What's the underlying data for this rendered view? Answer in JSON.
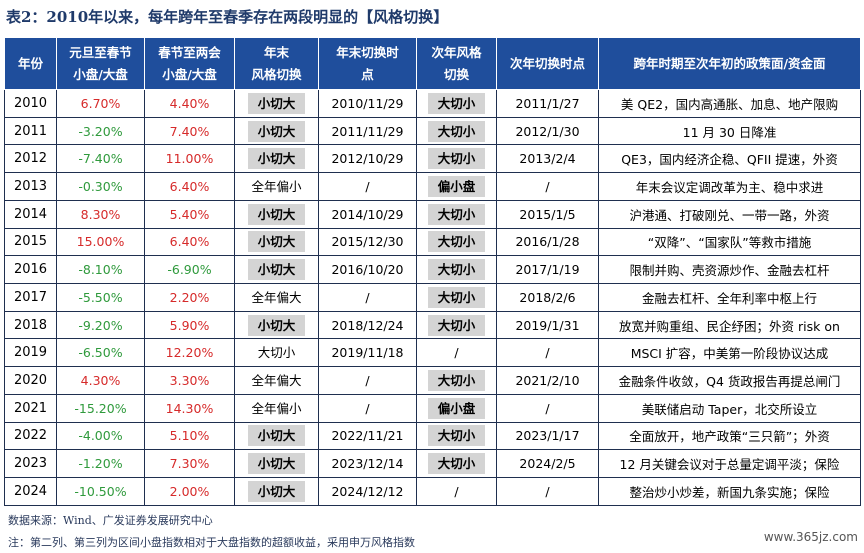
{
  "title": "表2：2010年以来，每年跨年至春季存在两段明显的【风格切换】",
  "headers": [
    "年份",
    "元旦至春节\n小盘/大盘",
    "春节至两会\n小盘/大盘",
    "年末\n风格切换",
    "年末切换时\n点",
    "次年风格\n切换",
    "次年切换时点",
    "跨年时期至次年初的政策面/资金面"
  ],
  "rows": [
    {
      "year": "2010",
      "c1": "6.70%",
      "c1c": "red",
      "c2": "4.40%",
      "c2c": "red",
      "ye": "小切大",
      "yeb": true,
      "yt": "2010/11/29",
      "ny": "大切小",
      "nyb": true,
      "nt": "2011/1/27",
      "policy": "美 QE2，国内高通胀、加息、地产限购"
    },
    {
      "year": "2011",
      "c1": "-3.20%",
      "c1c": "green",
      "c2": "7.40%",
      "c2c": "red",
      "ye": "小切大",
      "yeb": true,
      "yt": "2011/11/29",
      "ny": "大切小",
      "nyb": true,
      "nt": "2012/1/30",
      "policy": "11 月 30 日降准"
    },
    {
      "year": "2012",
      "c1": "-7.40%",
      "c1c": "green",
      "c2": "11.00%",
      "c2c": "red",
      "ye": "小切大",
      "yeb": true,
      "yt": "2012/10/29",
      "ny": "大切小",
      "nyb": true,
      "nt": "2013/2/4",
      "policy": "QE3，国内经济企稳、QFII 提速，外资"
    },
    {
      "year": "2013",
      "c1": "-0.30%",
      "c1c": "green",
      "c2": "6.40%",
      "c2c": "red",
      "ye": "全年偏小",
      "yeb": false,
      "yt": "/",
      "ny": "偏小盘",
      "nyb": true,
      "nt": "/",
      "policy": "年末会议定调改革为主、稳中求进"
    },
    {
      "year": "2014",
      "c1": "8.30%",
      "c1c": "red",
      "c2": "5.40%",
      "c2c": "red",
      "ye": "小切大",
      "yeb": true,
      "yt": "2014/10/29",
      "ny": "大切小",
      "nyb": true,
      "nt": "2015/1/5",
      "policy": "沪港通、打破刚兑、一带一路，外资"
    },
    {
      "year": "2015",
      "c1": "15.00%",
      "c1c": "red",
      "c2": "6.40%",
      "c2c": "red",
      "ye": "小切大",
      "yeb": true,
      "yt": "2015/12/30",
      "ny": "大切小",
      "nyb": true,
      "nt": "2016/1/28",
      "policy": "“双降”、“国家队”等救市措施"
    },
    {
      "year": "2016",
      "c1": "-8.10%",
      "c1c": "green",
      "c2": "-6.90%",
      "c2c": "green",
      "ye": "小切大",
      "yeb": true,
      "yt": "2016/10/20",
      "ny": "大切小",
      "nyb": true,
      "nt": "2017/1/19",
      "policy": "限制并购、壳资源炒作、金融去杠杆"
    },
    {
      "year": "2017",
      "c1": "-5.50%",
      "c1c": "green",
      "c2": "2.20%",
      "c2c": "red",
      "ye": "全年偏大",
      "yeb": false,
      "yt": "/",
      "ny": "大切小",
      "nyb": true,
      "nt": "2018/2/6",
      "policy": "金融去杠杆、全年利率中枢上行"
    },
    {
      "year": "2018",
      "c1": "-9.20%",
      "c1c": "green",
      "c2": "5.90%",
      "c2c": "red",
      "ye": "小切大",
      "yeb": true,
      "yt": "2018/12/24",
      "ny": "大切小",
      "nyb": true,
      "nt": "2019/1/31",
      "policy": "放宽并购重组、民企纾困；外资 risk on"
    },
    {
      "year": "2019",
      "c1": "-6.50%",
      "c1c": "green",
      "c2": "12.20%",
      "c2c": "red",
      "ye": "大切小",
      "yeb": false,
      "yt": "2019/11/18",
      "ny": "/",
      "nyb": false,
      "nt": "/",
      "policy": "MSCI 扩容，中美第一阶段协议达成"
    },
    {
      "year": "2020",
      "c1": "4.30%",
      "c1c": "red",
      "c2": "3.30%",
      "c2c": "red",
      "ye": "全年偏大",
      "yeb": false,
      "yt": "/",
      "ny": "大切小",
      "nyb": true,
      "nt": "2021/2/10",
      "policy": "金融条件收敛，Q4 货政报告再提总闸门"
    },
    {
      "year": "2021",
      "c1": "-15.20%",
      "c1c": "green",
      "c2": "14.30%",
      "c2c": "red",
      "ye": "全年偏小",
      "yeb": false,
      "yt": "/",
      "ny": "偏小盘",
      "nyb": true,
      "nt": "/",
      "policy": "美联储启动 Taper，北交所设立"
    },
    {
      "year": "2022",
      "c1": "-4.00%",
      "c1c": "green",
      "c2": "5.10%",
      "c2c": "red",
      "ye": "小切大",
      "yeb": true,
      "yt": "2022/11/21",
      "ny": "大切小",
      "nyb": true,
      "nt": "2023/1/17",
      "policy": "全面放开，地产政策“三只箭”；外资"
    },
    {
      "year": "2023",
      "c1": "-1.20%",
      "c1c": "green",
      "c2": "7.30%",
      "c2c": "red",
      "ye": "小切大",
      "yeb": true,
      "yt": "2023/12/14",
      "ny": "大切小",
      "nyb": true,
      "nt": "2024/2/5",
      "policy": "12 月关键会议对于总量定调平淡；保险"
    },
    {
      "year": "2024",
      "c1": "-10.50%",
      "c1c": "green",
      "c2": "2.00%",
      "c2c": "red",
      "ye": "小切大",
      "yeb": true,
      "yt": "2024/12/12",
      "ny": "/",
      "nyb": false,
      "nt": "/",
      "policy": "整治炒小炒差，新国九条实施；保险"
    }
  ],
  "source": "数据来源：Wind、广发证券发展研究中心",
  "note": "注：第二列、第三列为区间小盘指数相对于大盘指数的超额收益，采用申万风格指数",
  "watermark": "www.365jz.com",
  "colors": {
    "header_bg": "#1f4e9c",
    "positive": "#d62a2a",
    "negative": "#2f9a3c",
    "badge_bg": "#d4d4d4"
  }
}
